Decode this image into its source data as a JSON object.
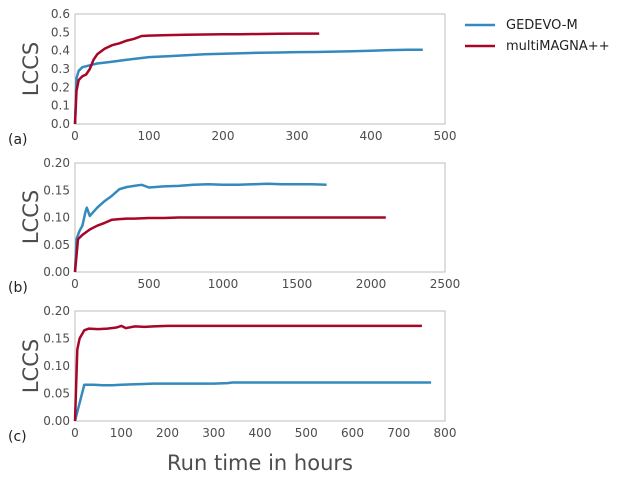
{
  "shared_xlabel": "Run time in hours",
  "legend": {
    "placement": "right of top panel",
    "entries": [
      {
        "name": "GEDEVO-M",
        "color": "#348ABD"
      },
      {
        "name": "multiMAGNA++",
        "color": "#A60628"
      }
    ]
  },
  "chart_data": [
    {
      "type": "line",
      "panel_label": "(a)",
      "ylabel": "LCCS",
      "xlim": [
        0,
        500
      ],
      "ylim": [
        0,
        0.6
      ],
      "xticks": [
        "0",
        "100",
        "200",
        "300",
        "400",
        "500"
      ],
      "yticks": [
        "0.0",
        "0.1",
        "0.2",
        "0.3",
        "0.4",
        "0.5",
        "0.6"
      ],
      "grid": false,
      "series": [
        {
          "name": "GEDEVO-M",
          "color": "#348ABD",
          "x": [
            0,
            2,
            5,
            10,
            20,
            30,
            40,
            50,
            60,
            70,
            80,
            90,
            100,
            125,
            150,
            175,
            200,
            225,
            250,
            275,
            300,
            325,
            350,
            375,
            400,
            425,
            450,
            470
          ],
          "y": [
            0,
            0.25,
            0.29,
            0.31,
            0.32,
            0.33,
            0.335,
            0.34,
            0.345,
            0.35,
            0.355,
            0.36,
            0.365,
            0.37,
            0.375,
            0.38,
            0.383,
            0.386,
            0.389,
            0.39,
            0.392,
            0.393,
            0.395,
            0.397,
            0.4,
            0.403,
            0.405,
            0.405
          ]
        },
        {
          "name": "multiMAGNA++",
          "color": "#A60628",
          "x": [
            0,
            2,
            5,
            10,
            15,
            20,
            25,
            30,
            40,
            50,
            60,
            70,
            80,
            90,
            100,
            125,
            150,
            175,
            200,
            225,
            250,
            275,
            300,
            330
          ],
          "y": [
            0,
            0.18,
            0.24,
            0.26,
            0.27,
            0.3,
            0.35,
            0.38,
            0.41,
            0.43,
            0.44,
            0.455,
            0.465,
            0.48,
            0.482,
            0.485,
            0.487,
            0.488,
            0.489,
            0.49,
            0.491,
            0.492,
            0.493,
            0.493
          ]
        }
      ]
    },
    {
      "type": "line",
      "panel_label": "(b)",
      "ylabel": "LCCS",
      "xlim": [
        0,
        2500
      ],
      "ylim": [
        0,
        0.2
      ],
      "xticks": [
        "0",
        "500",
        "1000",
        "1500",
        "2000",
        "2500"
      ],
      "yticks": [
        "0.00",
        "0.05",
        "0.10",
        "0.15",
        "0.20"
      ],
      "grid": false,
      "series": [
        {
          "name": "GEDEVO-M",
          "color": "#348ABD",
          "x": [
            0,
            10,
            30,
            50,
            70,
            80,
            100,
            150,
            200,
            250,
            300,
            350,
            400,
            450,
            500,
            600,
            700,
            800,
            900,
            1000,
            1100,
            1200,
            1300,
            1400,
            1500,
            1600,
            1700
          ],
          "y": [
            0,
            0.06,
            0.075,
            0.085,
            0.11,
            0.118,
            0.103,
            0.118,
            0.13,
            0.14,
            0.152,
            0.156,
            0.158,
            0.16,
            0.155,
            0.157,
            0.158,
            0.16,
            0.161,
            0.16,
            0.16,
            0.161,
            0.162,
            0.161,
            0.161,
            0.161,
            0.16
          ]
        },
        {
          "name": "multiMAGNA++",
          "color": "#A60628",
          "x": [
            0,
            20,
            50,
            100,
            150,
            200,
            250,
            300,
            350,
            400,
            500,
            600,
            700,
            800,
            900,
            1000,
            1200,
            1400,
            1600,
            1800,
            2000,
            2100
          ],
          "y": [
            0,
            0.06,
            0.068,
            0.078,
            0.085,
            0.09,
            0.096,
            0.097,
            0.098,
            0.098,
            0.099,
            0.099,
            0.1,
            0.1,
            0.1,
            0.1,
            0.1,
            0.1,
            0.1,
            0.1,
            0.1,
            0.1
          ]
        }
      ]
    },
    {
      "type": "line",
      "panel_label": "(c)",
      "ylabel": "LCCS",
      "xlabel": "Run time in hours",
      "xlim": [
        0,
        800
      ],
      "ylim": [
        0,
        0.2
      ],
      "xticks": [
        "0",
        "100",
        "200",
        "300",
        "400",
        "500",
        "600",
        "700",
        "800"
      ],
      "yticks": [
        "0.00",
        "0.05",
        "0.10",
        "0.15",
        "0.20"
      ],
      "grid": false,
      "series": [
        {
          "name": "GEDEVO-M",
          "color": "#348ABD",
          "x": [
            0,
            20,
            40,
            60,
            80,
            100,
            140,
            170,
            200,
            250,
            300,
            330,
            340,
            400,
            500,
            600,
            700,
            770
          ],
          "y": [
            0,
            0.066,
            0.066,
            0.065,
            0.065,
            0.066,
            0.067,
            0.068,
            0.068,
            0.068,
            0.068,
            0.069,
            0.07,
            0.07,
            0.07,
            0.07,
            0.07,
            0.07
          ]
        },
        {
          "name": "multiMAGNA++",
          "color": "#A60628",
          "x": [
            0,
            5,
            10,
            20,
            30,
            50,
            70,
            90,
            100,
            110,
            130,
            150,
            170,
            200,
            230,
            300,
            400,
            500,
            600,
            700,
            750
          ],
          "y": [
            0,
            0.13,
            0.15,
            0.165,
            0.168,
            0.167,
            0.168,
            0.17,
            0.173,
            0.169,
            0.172,
            0.171,
            0.172,
            0.173,
            0.173,
            0.173,
            0.173,
            0.173,
            0.173,
            0.173,
            0.173
          ]
        }
      ]
    }
  ]
}
